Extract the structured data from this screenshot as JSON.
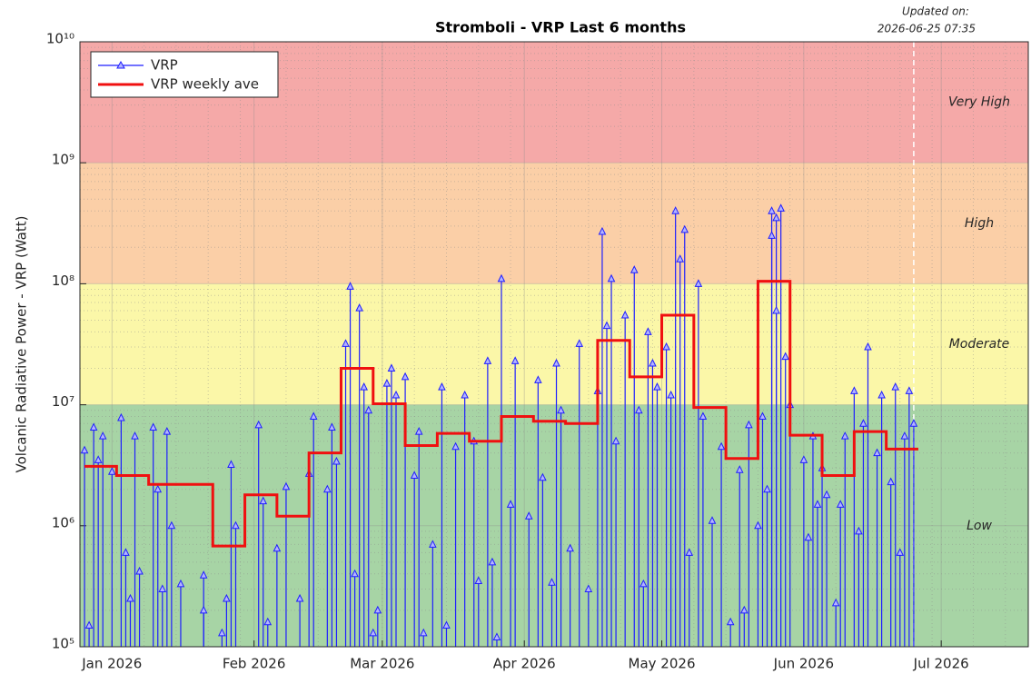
{
  "chart_data": {
    "type": "stem",
    "title": "Stromboli - VRP Last 6 months",
    "updated_label": "Updated on:",
    "updated_time": "2026-06-25 07:35",
    "y_label": "Volcanic Radiative Power - VRP (Watt)",
    "log_y": true,
    "grid": true,
    "minor_grid": true,
    "legend": "upper left",
    "xlim": [
      "2025-12-25",
      "2026-07-20"
    ],
    "xticks": [
      {
        "value": "2026-01-01",
        "label": "Jan 2026"
      },
      {
        "value": "2026-02-01",
        "label": "Feb 2026"
      },
      {
        "value": "2026-03-01",
        "label": "Mar 2026"
      },
      {
        "value": "2026-04-01",
        "label": "Apr 2026"
      },
      {
        "value": "2026-05-01",
        "label": "May 2026"
      },
      {
        "value": "2026-06-01",
        "label": "Jun 2026"
      },
      {
        "value": "2026-07-01",
        "label": "Jul 2026"
      }
    ],
    "ylim": [
      100000,
      10000000000
    ],
    "yticks": [
      {
        "value": 100000,
        "label": "10⁵"
      },
      {
        "value": 1000000,
        "label": "10⁶"
      },
      {
        "value": 10000000,
        "label": "10⁷"
      },
      {
        "value": 100000000,
        "label": "10⁸"
      },
      {
        "value": 1000000000,
        "label": "10⁹"
      },
      {
        "value": 10000000000,
        "label": "10¹⁰"
      }
    ],
    "bands": [
      {
        "label": "Very High",
        "range": [
          1000000000,
          10000000000
        ],
        "color": "#f5a9a8"
      },
      {
        "label": "High",
        "range": [
          100000000,
          1000000000
        ],
        "color": "#fbcfa7"
      },
      {
        "label": "Moderate",
        "range": [
          10000000,
          100000000
        ],
        "color": "#fbf7a8"
      },
      {
        "label": "Low",
        "range": [
          100000,
          10000000
        ],
        "color": "#a7d4a5"
      }
    ],
    "series": [
      {
        "name": "VRP",
        "color": "#1f1fff",
        "style": "stem",
        "x": [
          "2025-12-26",
          "2025-12-27",
          "2025-12-28",
          "2025-12-29",
          "2025-12-30",
          "2026-01-01",
          "2026-01-03",
          "2026-01-04",
          "2026-01-05",
          "2026-01-06",
          "2026-01-07",
          "2026-01-10",
          "2026-01-11",
          "2026-01-12",
          "2026-01-13",
          "2026-01-14",
          "2026-01-16",
          "2026-01-21",
          "2026-01-21",
          "2026-01-25",
          "2026-01-26",
          "2026-01-27",
          "2026-01-28",
          "2026-02-02",
          "2026-02-03",
          "2026-02-04",
          "2026-02-06",
          "2026-02-08",
          "2026-02-11",
          "2026-02-13",
          "2026-02-14",
          "2026-02-17",
          "2026-02-18",
          "2026-02-19",
          "2026-02-21",
          "2026-02-22",
          "2026-02-23",
          "2026-02-24",
          "2026-02-25",
          "2026-02-26",
          "2026-02-27",
          "2026-02-28",
          "2026-03-02",
          "2026-03-03",
          "2026-03-04",
          "2026-03-06",
          "2026-03-08",
          "2026-03-09",
          "2026-03-10",
          "2026-03-12",
          "2026-03-14",
          "2026-03-15",
          "2026-03-17",
          "2026-03-19",
          "2026-03-21",
          "2026-03-22",
          "2026-03-24",
          "2026-03-25",
          "2026-03-26",
          "2026-03-27",
          "2026-03-29",
          "2026-03-30",
          "2026-04-02",
          "2026-04-04",
          "2026-04-05",
          "2026-04-07",
          "2026-04-08",
          "2026-04-09",
          "2026-04-11",
          "2026-04-13",
          "2026-04-15",
          "2026-04-17",
          "2026-04-18",
          "2026-04-19",
          "2026-04-20",
          "2026-04-21",
          "2026-04-23",
          "2026-04-25",
          "2026-04-26",
          "2026-04-27",
          "2026-04-28",
          "2026-04-29",
          "2026-04-30",
          "2026-05-02",
          "2026-05-03",
          "2026-05-04",
          "2026-05-05",
          "2026-05-06",
          "2026-05-07",
          "2026-05-09",
          "2026-05-10",
          "2026-05-12",
          "2026-05-14",
          "2026-05-16",
          "2026-05-18",
          "2026-05-19",
          "2026-05-20",
          "2026-05-22",
          "2026-05-23",
          "2026-05-24",
          "2026-05-25",
          "2026-05-25",
          "2026-05-26",
          "2026-05-26",
          "2026-05-27",
          "2026-05-28",
          "2026-05-29",
          "2026-06-01",
          "2026-06-02",
          "2026-06-03",
          "2026-06-04",
          "2026-06-05",
          "2026-06-06",
          "2026-06-08",
          "2026-06-09",
          "2026-06-10",
          "2026-06-12",
          "2026-06-13",
          "2026-06-14",
          "2026-06-15",
          "2026-06-17",
          "2026-06-18",
          "2026-06-20",
          "2026-06-21",
          "2026-06-22",
          "2026-06-23",
          "2026-06-24",
          "2026-06-25"
        ],
        "values": [
          4200000,
          150000,
          6500000,
          3500000,
          5500000,
          2800000,
          7800000,
          600000,
          250000,
          5500000,
          420000,
          6500000,
          2000000,
          300000,
          6000000,
          1000000,
          330000,
          390000,
          200000,
          130000,
          250000,
          3200000,
          1000000,
          6800000,
          1600000,
          160000,
          650000,
          2100000,
          250000,
          2700000,
          8000000,
          2000000,
          6500000,
          3400000,
          32000000,
          95000000,
          400000,
          63000000,
          14000000,
          9000000,
          130000,
          200000,
          15000000,
          20000000,
          12000000,
          17000000,
          2600000,
          6000000,
          130000,
          700000,
          14000000,
          150000,
          4500000,
          12000000,
          5000000,
          350000,
          23000000,
          500000,
          120000,
          110000000,
          1500000,
          23000000,
          1200000,
          16000000,
          2500000,
          340000,
          22000000,
          9000000,
          650000,
          32000000,
          300000,
          13000000,
          270000000,
          45000000,
          110000000,
          5000000,
          55000000,
          130000000,
          9000000,
          330000,
          40000000,
          22000000,
          14000000,
          30000000,
          12000000,
          400000000,
          160000000,
          280000000,
          600000,
          100000000,
          8000000,
          1100000,
          4500000,
          160000,
          2900000,
          200000,
          6800000,
          1000000,
          8000000,
          2000000,
          400000000,
          250000000,
          350000000,
          60000000,
          420000000,
          25000000,
          10000000,
          3500000,
          800000,
          5500000,
          1500000,
          3000000,
          1800000,
          230000,
          1500000,
          5500000,
          13000000,
          900000,
          7000000,
          30000000,
          4000000,
          12000000,
          2300000,
          14000000,
          600000,
          5500000,
          13000000,
          7000000
        ]
      },
      {
        "name": "VRP weekly ave",
        "color": "#f01010",
        "style": "step",
        "x": [
          "2025-12-26",
          "2026-01-02",
          "2026-01-09",
          "2026-01-16",
          "2026-01-23",
          "2026-01-30",
          "2026-02-06",
          "2026-02-13",
          "2026-02-20",
          "2026-02-27",
          "2026-03-06",
          "2026-03-13",
          "2026-03-20",
          "2026-03-27",
          "2026-04-03",
          "2026-04-10",
          "2026-04-17",
          "2026-04-24",
          "2026-05-01",
          "2026-05-08",
          "2026-05-15",
          "2026-05-22",
          "2026-05-29",
          "2026-06-05",
          "2026-06-12",
          "2026-06-19",
          "2026-06-26"
        ],
        "values": [
          3100000,
          2600000,
          2200000,
          2200000,
          680000,
          1800000,
          1200000,
          4000000,
          20000000,
          10200000,
          4600000,
          5800000,
          5000000,
          8000000,
          7300000,
          7000000,
          34000000,
          17000000,
          55000000,
          9500000,
          3600000,
          105000000,
          5600000,
          2600000,
          6000000,
          4300000,
          4300000
        ]
      }
    ]
  }
}
